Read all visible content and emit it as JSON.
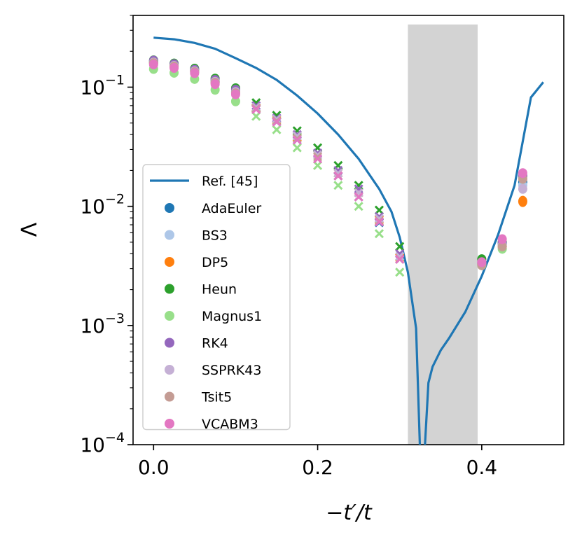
{
  "chart_data": {
    "type": "scatter",
    "xlabel": "−t′/t",
    "ylabel": "Λ",
    "xlim": [
      -0.025,
      0.5
    ],
    "ylim": [
      0.0001,
      0.4
    ],
    "yscale": "log",
    "x_ticks": [
      0.0,
      0.2,
      0.4
    ],
    "x_tick_labels": [
      "0.0",
      "0.2",
      "0.4"
    ],
    "y_ticks": [
      {
        "value": 0.1,
        "base": "10",
        "exp": "−1"
      },
      {
        "value": 0.01,
        "base": "10",
        "exp": "−2"
      },
      {
        "value": 0.001,
        "base": "10",
        "exp": "−3"
      },
      {
        "value": 0.0001,
        "base": "10",
        "exp": "−4"
      }
    ],
    "shaded_region": {
      "x": [
        0.31,
        0.395
      ],
      "color": "#d3d3d3"
    },
    "legend_position": "lower-left",
    "reference": {
      "name": "Ref. [45]",
      "color": "#1f77b4",
      "x": [
        0.0,
        0.025,
        0.05,
        0.075,
        0.1,
        0.125,
        0.15,
        0.175,
        0.2,
        0.225,
        0.25,
        0.275,
        0.29,
        0.3,
        0.31,
        0.32,
        0.325,
        0.33,
        0.335,
        0.34,
        0.35,
        0.36,
        0.38,
        0.4,
        0.42,
        0.44,
        0.45,
        0.46,
        0.475
      ],
      "y": [
        0.26,
        0.252,
        0.235,
        0.21,
        0.175,
        0.145,
        0.115,
        0.085,
        0.06,
        0.04,
        0.025,
        0.014,
        0.009,
        0.0055,
        0.0028,
        0.00095,
        8e-05,
        8e-05,
        0.00033,
        0.00045,
        0.00062,
        0.00078,
        0.0013,
        0.0026,
        0.0058,
        0.015,
        0.035,
        0.082,
        0.11
      ]
    },
    "x": [
      0.0,
      0.025,
      0.05,
      0.075,
      0.1,
      0.125,
      0.15,
      0.175,
      0.2,
      0.225,
      0.25,
      0.275,
      0.3,
      0.4,
      0.425,
      0.45
    ],
    "series": [
      {
        "name": "AdaEuler",
        "color": "#1f77b4",
        "values": [
          0.163,
          0.153,
          0.138,
          0.112,
          0.092,
          0.066,
          0.051,
          0.036,
          0.027,
          0.018,
          0.012,
          0.0073,
          0.0036,
          0.0033,
          0.0048,
          0.016
        ]
      },
      {
        "name": "BS3",
        "color": "#aec7e8",
        "values": [
          0.16,
          0.15,
          0.135,
          0.11,
          0.09,
          0.068,
          0.055,
          0.039,
          0.028,
          0.019,
          0.013,
          0.0078,
          0.0038,
          0.0034,
          0.0049,
          0.015
        ]
      },
      {
        "name": "DP5",
        "color": "#ff7f0e",
        "values": [
          0.16,
          0.15,
          0.136,
          0.11,
          0.091,
          0.067,
          0.053,
          0.038,
          0.027,
          0.019,
          0.013,
          0.0077,
          0.0037,
          0.0033,
          0.0046,
          0.011
        ]
      },
      {
        "name": "Heun",
        "color": "#2ca02c",
        "values": [
          0.168,
          0.158,
          0.143,
          0.118,
          0.098,
          0.074,
          0.058,
          0.043,
          0.031,
          0.022,
          0.015,
          0.0093,
          0.0046,
          0.0036,
          0.005,
          0.018
        ]
      },
      {
        "name": "Magnus1",
        "color": "#98df8a",
        "values": [
          0.142,
          0.132,
          0.117,
          0.095,
          0.076,
          0.057,
          0.044,
          0.031,
          0.022,
          0.015,
          0.01,
          0.0059,
          0.0028,
          0.0032,
          0.0044,
          0.017
        ]
      },
      {
        "name": "RK4",
        "color": "#9467bd",
        "values": [
          0.167,
          0.156,
          0.14,
          0.115,
          0.095,
          0.07,
          0.055,
          0.04,
          0.028,
          0.02,
          0.014,
          0.0082,
          0.004,
          0.0034,
          0.0049,
          0.018
        ]
      },
      {
        "name": "SSPRK43",
        "color": "#c5b0d5",
        "values": [
          0.161,
          0.151,
          0.136,
          0.111,
          0.091,
          0.068,
          0.054,
          0.039,
          0.027,
          0.019,
          0.013,
          0.0079,
          0.0038,
          0.0033,
          0.0047,
          0.014
        ]
      },
      {
        "name": "Tsit5",
        "color": "#c49c94",
        "values": [
          0.159,
          0.149,
          0.134,
          0.109,
          0.089,
          0.066,
          0.052,
          0.037,
          0.026,
          0.018,
          0.012,
          0.0075,
          0.0036,
          0.0032,
          0.0046,
          0.017
        ]
      },
      {
        "name": "VCABM3",
        "color": "#e377c2",
        "values": [
          0.155,
          0.145,
          0.131,
          0.106,
          0.087,
          0.065,
          0.051,
          0.036,
          0.025,
          0.018,
          0.012,
          0.0074,
          0.0036,
          0.0034,
          0.0053,
          0.019
        ]
      }
    ],
    "cross_markers": {
      "note": "Within the shaded-left region several points are drawn as 'x' markers (a second marker per method).",
      "x": [
        0.125,
        0.15,
        0.175,
        0.2,
        0.225,
        0.25,
        0.275,
        0.3
      ]
    }
  }
}
